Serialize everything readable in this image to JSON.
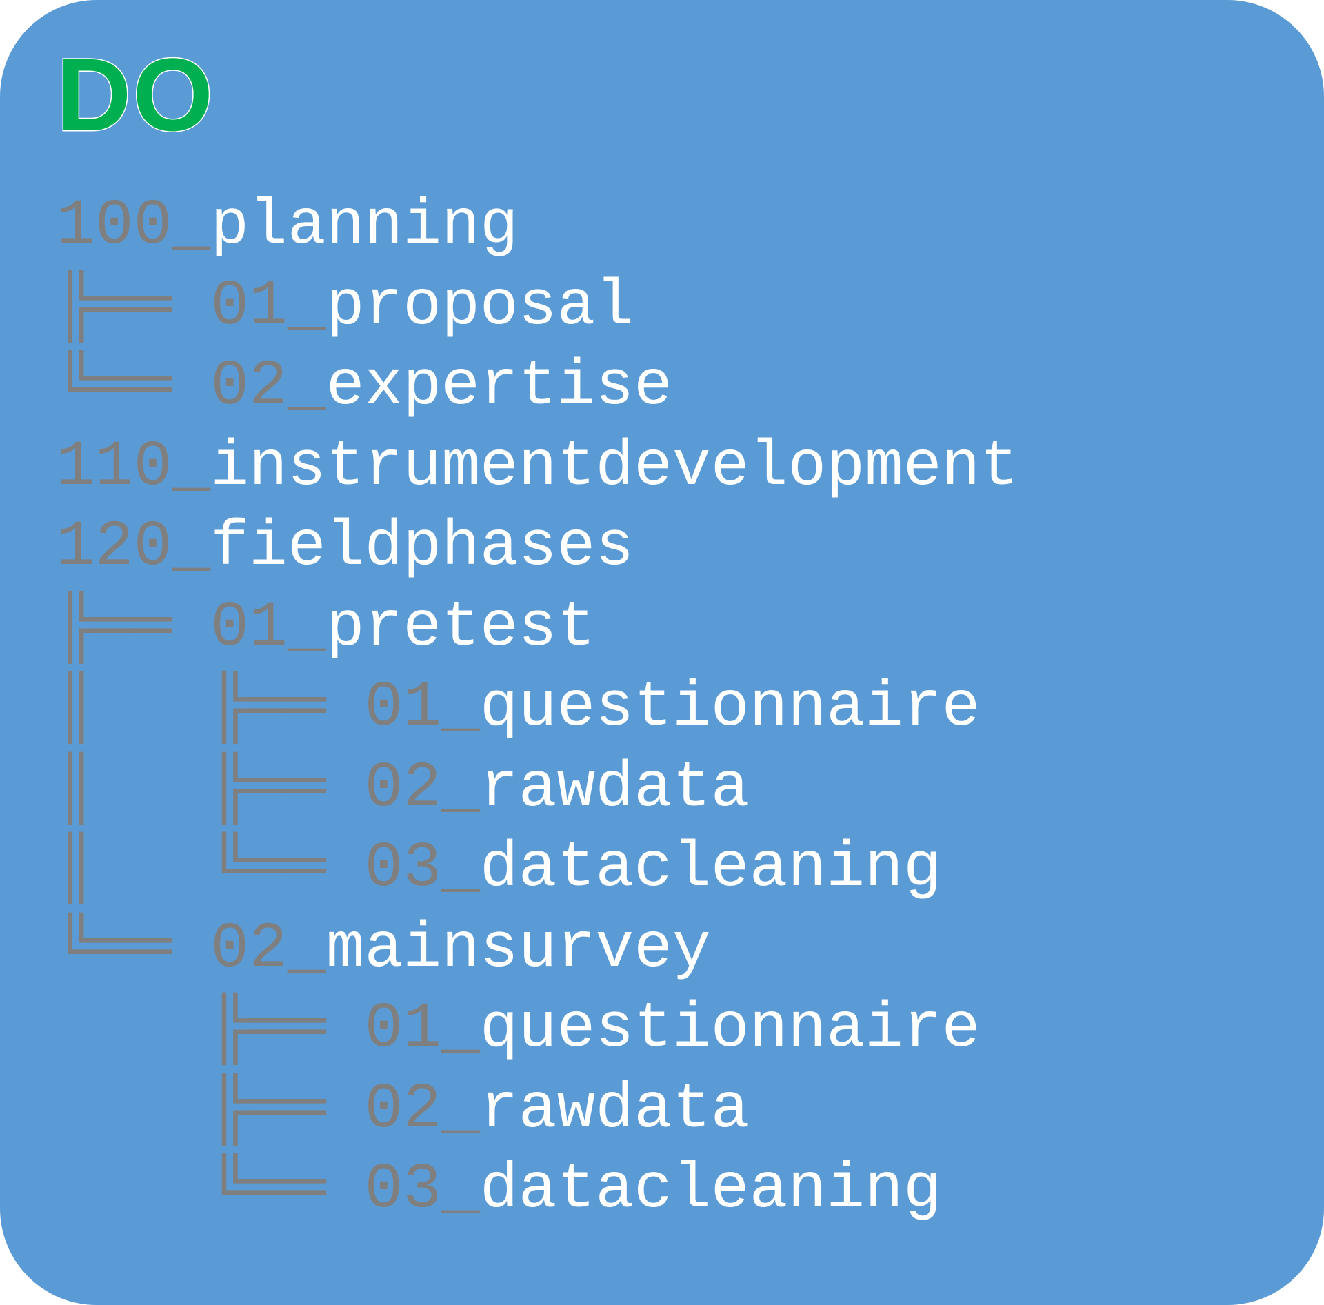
{
  "card": {
    "title": "DO",
    "background_color": "#5b9bd5",
    "title_color": "#00b050",
    "prefix_color": "#7f7f7f",
    "name_color": "#ffffff"
  },
  "tree": [
    {
      "connector": "",
      "prefix": "100_",
      "name": "planning"
    },
    {
      "connector": "╠══ ",
      "prefix": "01_",
      "name": "proposal"
    },
    {
      "connector": "╚══ ",
      "prefix": "02_",
      "name": "expertise"
    },
    {
      "connector": "",
      "prefix": "110_",
      "name": "instrumentdevelopment"
    },
    {
      "connector": "",
      "prefix": "120_",
      "name": "fieldphases"
    },
    {
      "connector": "╠══ ",
      "prefix": "01_",
      "name": "pretest"
    },
    {
      "connector": "║   ╠══ ",
      "prefix": "01_",
      "name": "questionnaire"
    },
    {
      "connector": "║   ╠══ ",
      "prefix": "02_",
      "name": "rawdata"
    },
    {
      "connector": "║   ╚══ ",
      "prefix": "03_",
      "name": "datacleaning"
    },
    {
      "connector": "╚══ ",
      "prefix": "02_",
      "name": "mainsurvey"
    },
    {
      "connector": "    ╠══ ",
      "prefix": "01_",
      "name": "questionnaire"
    },
    {
      "connector": "    ╠══ ",
      "prefix": "02_",
      "name": "rawdata"
    },
    {
      "connector": "    ╚══ ",
      "prefix": "03_",
      "name": "datacleaning"
    }
  ]
}
